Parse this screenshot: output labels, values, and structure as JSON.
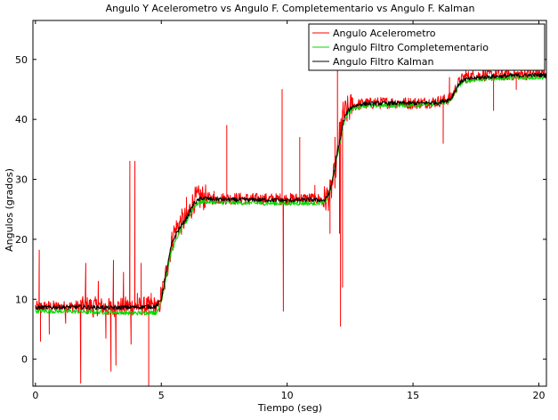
{
  "chart_data": {
    "type": "line",
    "title": "Angulo Y Acelerometro vs Angulo F. Completementario vs Angulo F. Kalman",
    "xlabel": "Tiempo (seg)",
    "ylabel": "Angulos (grados)",
    "xlim": [
      -0.1,
      20.3
    ],
    "ylim": [
      -4.5,
      56.5
    ],
    "xticks": [
      0,
      5,
      10,
      15,
      20
    ],
    "yticks": [
      0,
      10,
      20,
      30,
      40,
      50
    ],
    "grid": false,
    "legend_position": "top-right",
    "series": [
      {
        "name": "Angulo Acelerometro",
        "color": "#ff0000",
        "noise": "high",
        "x": [
          0,
          0.5,
          1,
          1.5,
          2,
          2.5,
          3,
          3.5,
          4,
          4.5,
          4.9,
          5.1,
          5.3,
          5.5,
          5.7,
          6.0,
          6.3,
          6.6,
          7,
          8,
          9,
          10,
          11,
          11.5,
          11.7,
          11.9,
          12.0,
          12.1,
          12.2,
          12.3,
          12.4,
          12.6,
          13,
          14,
          15,
          15.8,
          16.0,
          16.5,
          16.8,
          17,
          17.5,
          18,
          19,
          20,
          20.3
        ],
        "y": [
          8.7,
          8.8,
          8.7,
          8.8,
          8.9,
          8.8,
          8.6,
          8.9,
          8.8,
          8.9,
          9.0,
          12,
          17,
          21,
          22.5,
          23.5,
          26.5,
          27.0,
          26.8,
          26.8,
          26.7,
          26.7,
          26.8,
          26.6,
          27.5,
          31,
          34,
          38,
          40.5,
          41,
          41.5,
          42.3,
          42.6,
          42.8,
          42.7,
          42.9,
          43.0,
          43.5,
          46,
          47,
          47.3,
          47.4,
          47.5,
          47.6,
          47.6
        ],
        "spikes": [
          [
            0.15,
            18.2
          ],
          [
            0.2,
            3.0
          ],
          [
            0.55,
            4.2
          ],
          [
            1.2,
            6.0
          ],
          [
            1.8,
            -4.0
          ],
          [
            2.0,
            16.0
          ],
          [
            2.3,
            7.0
          ],
          [
            2.5,
            13.0
          ],
          [
            2.8,
            3.5
          ],
          [
            3.0,
            -2.0
          ],
          [
            3.1,
            16.5
          ],
          [
            3.2,
            -1.0
          ],
          [
            3.5,
            14.5
          ],
          [
            3.75,
            33.0
          ],
          [
            3.8,
            2.5
          ],
          [
            3.95,
            33.0
          ],
          [
            4.05,
            11.0
          ],
          [
            4.2,
            16.0
          ],
          [
            4.5,
            -4.5
          ],
          [
            4.6,
            11.0
          ],
          [
            5.4,
            20.5
          ],
          [
            6.0,
            27.0
          ],
          [
            6.55,
            28.3
          ],
          [
            7.1,
            28.0
          ],
          [
            7.6,
            39.0
          ],
          [
            9.8,
            45.0
          ],
          [
            9.85,
            8.0
          ],
          [
            10.5,
            37.0
          ],
          [
            11.1,
            29.0
          ],
          [
            11.7,
            21.0
          ],
          [
            11.9,
            37.0
          ],
          [
            12.0,
            49.0
          ],
          [
            12.08,
            21.0
          ],
          [
            12.12,
            5.5
          ],
          [
            12.2,
            12.0
          ],
          [
            12.25,
            41.0
          ],
          [
            12.5,
            41.5
          ],
          [
            13.5,
            43.5
          ],
          [
            16.2,
            36.0
          ],
          [
            16.45,
            47.0
          ],
          [
            17.1,
            48.5
          ],
          [
            18.2,
            41.5
          ],
          [
            18.3,
            48.5
          ],
          [
            19.1,
            45.0
          ],
          [
            20.0,
            48.0
          ]
        ]
      },
      {
        "name": "Angulo Filtro Completementario",
        "color": "#00dd00",
        "noise": "low",
        "x": [
          0,
          1,
          2,
          3,
          4,
          4.8,
          5.0,
          5.2,
          5.4,
          5.6,
          5.8,
          6.0,
          6.3,
          6.6,
          7,
          8,
          9,
          10,
          11,
          11.5,
          11.7,
          11.9,
          12.0,
          12.1,
          12.2,
          12.3,
          12.4,
          12.6,
          13,
          14,
          15,
          16,
          16.5,
          16.8,
          17,
          17.5,
          18,
          19,
          20,
          20.3
        ],
        "y": [
          8.0,
          8.0,
          7.9,
          7.8,
          7.7,
          7.8,
          9.5,
          14,
          18,
          20,
          22,
          23,
          25.5,
          26.3,
          26.2,
          26.1,
          26.0,
          26.0,
          26.0,
          26.1,
          28,
          32,
          34,
          36,
          38.5,
          40,
          41,
          41.8,
          42.3,
          42.3,
          42.4,
          42.6,
          43,
          45.5,
          46.3,
          46.6,
          46.8,
          46.9,
          47.0,
          47.0
        ]
      },
      {
        "name": "Angulo Filtro Kalman",
        "color": "#000000",
        "noise": "low",
        "x": [
          0,
          1,
          2,
          3,
          4,
          4.8,
          5.0,
          5.2,
          5.4,
          5.6,
          5.8,
          6.0,
          6.3,
          6.6,
          7,
          8,
          9,
          10,
          11,
          11.5,
          11.7,
          11.9,
          12.0,
          12.1,
          12.2,
          12.3,
          12.4,
          12.6,
          13,
          14,
          15,
          16,
          16.5,
          16.8,
          17,
          17.5,
          18,
          19,
          20,
          20.3
        ],
        "y": [
          8.6,
          8.7,
          8.7,
          8.6,
          8.7,
          8.8,
          10,
          14.5,
          19,
          21,
          22.3,
          23.5,
          26,
          26.9,
          26.7,
          26.6,
          26.6,
          26.5,
          26.6,
          26.5,
          28,
          32,
          34.5,
          36.5,
          39,
          40.5,
          41.3,
          42.2,
          42.6,
          42.7,
          42.7,
          42.8,
          43.4,
          45.8,
          46.6,
          46.9,
          47.1,
          47.3,
          47.4,
          47.4
        ]
      }
    ]
  }
}
